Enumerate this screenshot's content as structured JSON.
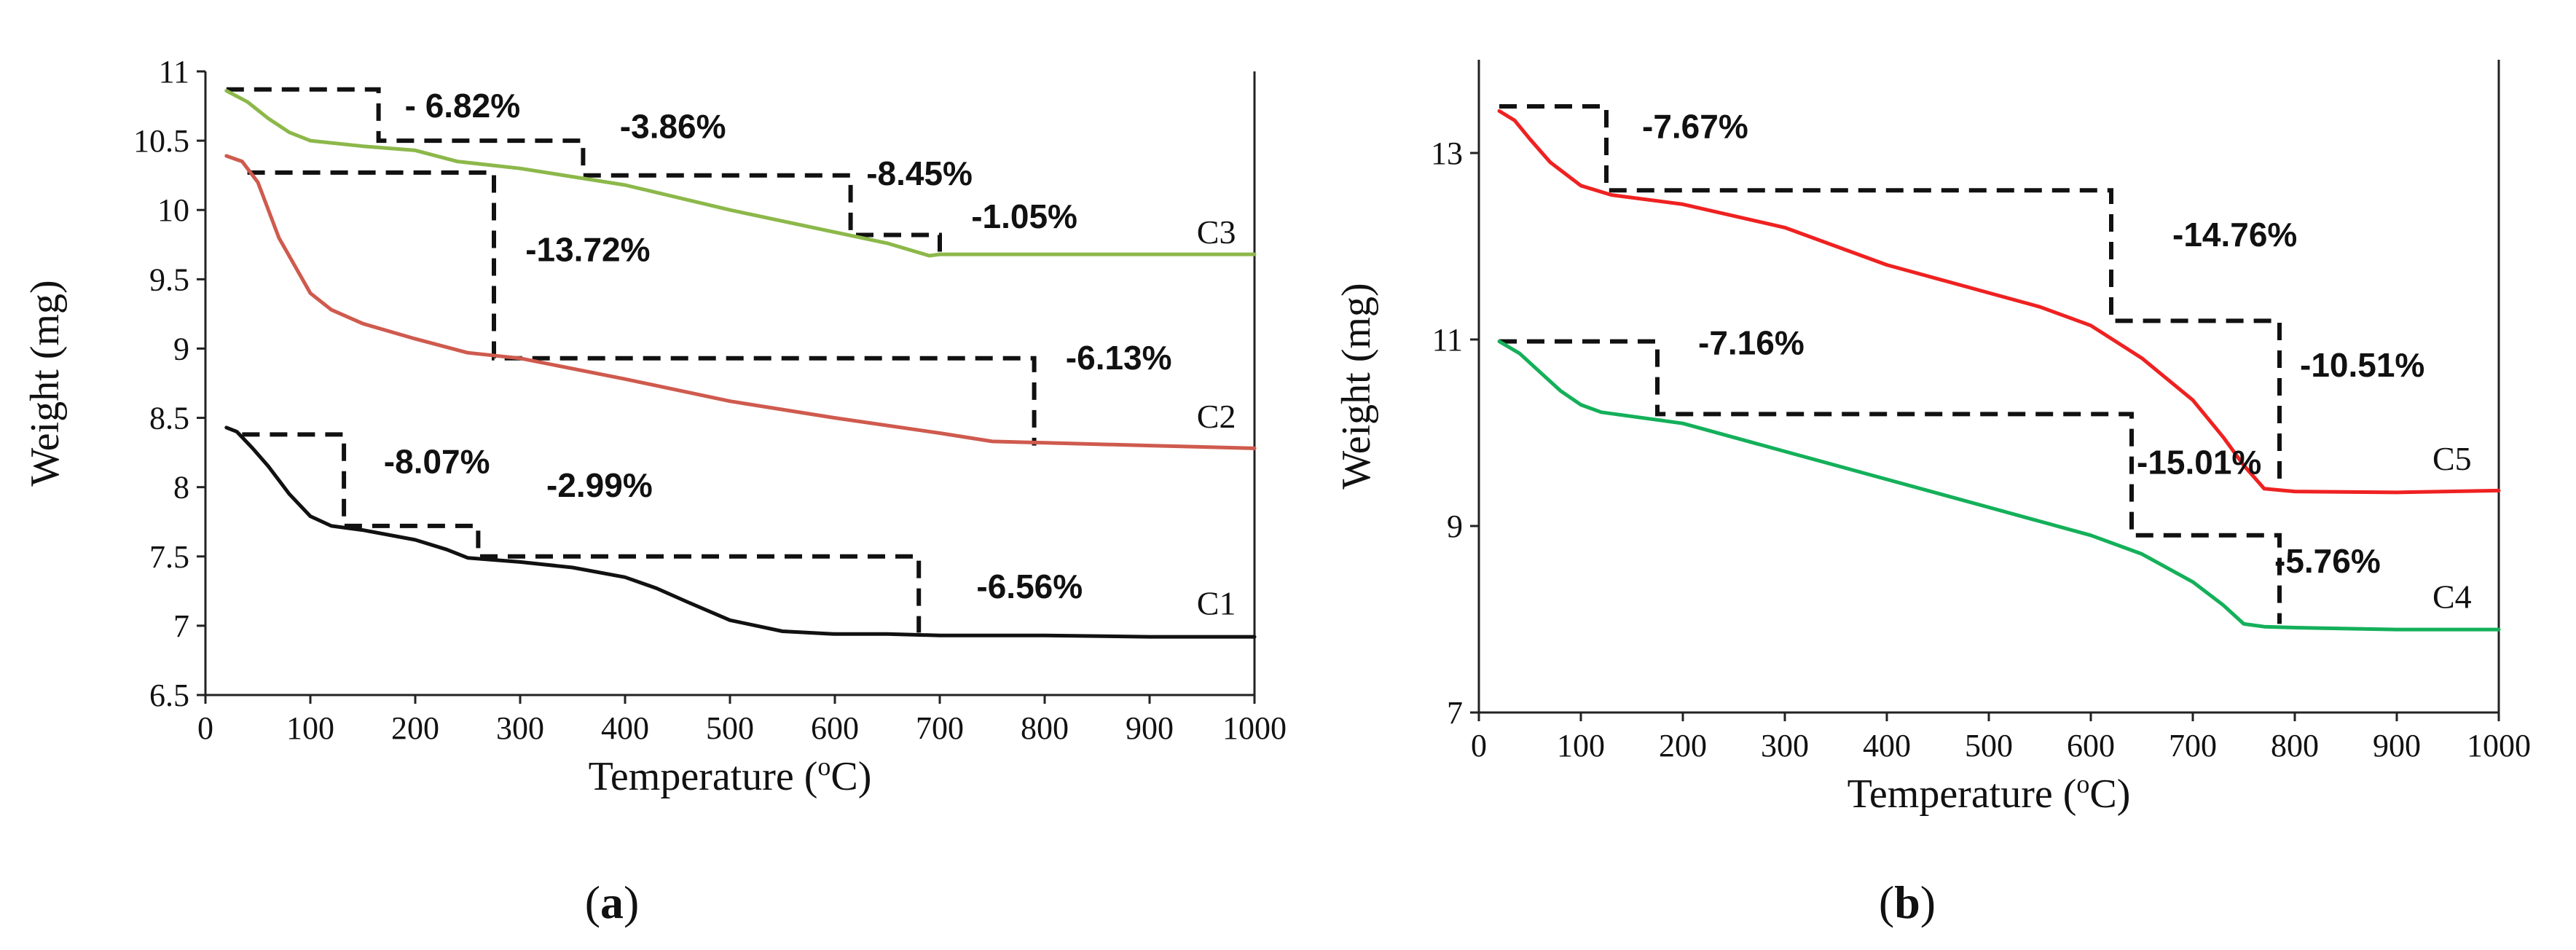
{
  "chart_data": [
    {
      "type": "line",
      "panel_label": "a",
      "xlabel": "Temperature (°C)",
      "ylabel": "Weight  (mg)",
      "xlim": [
        0,
        1000
      ],
      "ylim": [
        6.5,
        11
      ],
      "xticks": [
        0,
        100,
        200,
        300,
        400,
        500,
        600,
        700,
        800,
        900,
        1000
      ],
      "yticks": [
        6.5,
        7,
        7.5,
        8,
        8.5,
        9,
        9.5,
        10,
        10.5,
        11
      ],
      "ytick_labels": [
        "6.5",
        "7",
        "7.5",
        "8",
        "8.5",
        "9",
        "9.5",
        "10",
        "10.5",
        "11"
      ],
      "grid": false,
      "series": [
        {
          "name": "C1",
          "color": "#111111",
          "x": [
            20,
            30,
            45,
            60,
            80,
            100,
            120,
            150,
            200,
            230,
            250,
            300,
            350,
            400,
            430,
            460,
            500,
            550,
            600,
            650,
            700,
            800,
            900,
            1000
          ],
          "values": [
            8.43,
            8.4,
            8.28,
            8.15,
            7.95,
            7.79,
            7.72,
            7.69,
            7.62,
            7.55,
            7.49,
            7.46,
            7.42,
            7.35,
            7.27,
            7.17,
            7.04,
            6.96,
            6.94,
            6.94,
            6.93,
            6.93,
            6.92,
            6.92
          ]
        },
        {
          "name": "C2",
          "color": "#cf5a4e",
          "x": [
            20,
            35,
            50,
            70,
            100,
            120,
            150,
            200,
            250,
            300,
            400,
            500,
            600,
            700,
            750,
            800,
            900,
            1000
          ],
          "values": [
            10.39,
            10.35,
            10.2,
            9.8,
            9.4,
            9.28,
            9.18,
            9.07,
            8.97,
            8.93,
            8.78,
            8.62,
            8.5,
            8.39,
            8.33,
            8.32,
            8.3,
            8.28
          ]
        },
        {
          "name": "C3",
          "color": "#8cb84a",
          "x": [
            20,
            40,
            60,
            80,
            100,
            150,
            200,
            240,
            300,
            400,
            500,
            600,
            650,
            690,
            700,
            800,
            900,
            1000
          ],
          "values": [
            10.86,
            10.78,
            10.66,
            10.56,
            10.5,
            10.46,
            10.43,
            10.35,
            10.3,
            10.18,
            10.0,
            9.84,
            9.76,
            9.67,
            9.68,
            9.68,
            9.68,
            9.68
          ]
        }
      ],
      "step_lines": [
        {
          "x": [
            20,
            165,
            165,
            360,
            360,
            615,
            615,
            700,
            700
          ],
          "values": [
            10.87,
            10.87,
            10.5,
            10.5,
            10.25,
            10.25,
            9.82,
            9.82,
            9.68
          ]
        },
        {
          "x": [
            40,
            275,
            275,
            790,
            790
          ],
          "values": [
            10.27,
            10.27,
            8.93,
            8.93,
            8.3
          ]
        },
        {
          "x": [
            35,
            132,
            132,
            260,
            260,
            680,
            680
          ],
          "values": [
            8.38,
            8.38,
            7.72,
            7.72,
            7.5,
            7.5,
            6.95
          ]
        }
      ],
      "annotations": [
        {
          "text": "- 6.82%",
          "x": 190,
          "y": 10.67
        },
        {
          "text": "-3.86%",
          "x": 395,
          "y": 10.52
        },
        {
          "text": "-8.45%",
          "x": 630,
          "y": 10.18
        },
        {
          "text": "-1.05%",
          "x": 730,
          "y": 9.87
        },
        {
          "text": "-13.72%",
          "x": 305,
          "y": 9.63
        },
        {
          "text": "-6.13%",
          "x": 820,
          "y": 8.85
        },
        {
          "text": "-8.07%",
          "x": 170,
          "y": 8.1
        },
        {
          "text": "-2.99%",
          "x": 325,
          "y": 7.93
        },
        {
          "text": "-6.56%",
          "x": 735,
          "y": 7.2
        },
        {
          "text": "C3",
          "x": 945,
          "y": 9.76,
          "kind": "series"
        },
        {
          "text": "C2",
          "x": 945,
          "y": 8.43,
          "kind": "series"
        },
        {
          "text": "C1",
          "x": 945,
          "y": 7.08,
          "kind": "series"
        }
      ]
    },
    {
      "type": "line",
      "panel_label": "b",
      "xlabel": "Temperature (°C)",
      "ylabel": "Weight (mg)",
      "xlim": [
        0,
        1000
      ],
      "ylim": [
        7,
        14
      ],
      "xticks": [
        0,
        100,
        200,
        300,
        400,
        500,
        600,
        700,
        800,
        900,
        1000
      ],
      "yticks": [
        7,
        9,
        11,
        13
      ],
      "ytick_labels": [
        "7",
        "9",
        "11",
        "13"
      ],
      "grid": false,
      "series": [
        {
          "name": "C5",
          "color": "#ef2121",
          "x": [
            20,
            35,
            50,
            70,
            100,
            130,
            200,
            300,
            400,
            500,
            550,
            600,
            650,
            700,
            730,
            750,
            770,
            790,
            800,
            900,
            1000
          ],
          "values": [
            13.45,
            13.35,
            13.15,
            12.9,
            12.65,
            12.55,
            12.45,
            12.2,
            11.8,
            11.5,
            11.35,
            11.15,
            10.8,
            10.35,
            9.95,
            9.65,
            9.4,
            9.38,
            9.37,
            9.36,
            9.38
          ]
        },
        {
          "name": "C4",
          "color": "#14b05a",
          "x": [
            20,
            40,
            60,
            80,
            100,
            120,
            200,
            300,
            400,
            500,
            600,
            650,
            700,
            730,
            750,
            770,
            800,
            900,
            1000
          ],
          "values": [
            10.98,
            10.85,
            10.65,
            10.45,
            10.3,
            10.22,
            10.1,
            9.8,
            9.5,
            9.2,
            8.9,
            8.7,
            8.4,
            8.15,
            7.95,
            7.92,
            7.91,
            7.89,
            7.89
          ]
        }
      ],
      "step_lines": [
        {
          "x": [
            20,
            125,
            125,
            620,
            620,
            785,
            785
          ],
          "values": [
            13.5,
            13.5,
            12.6,
            12.6,
            11.2,
            11.2,
            9.37
          ]
        },
        {
          "x": [
            20,
            175,
            175,
            640,
            640,
            785,
            785
          ],
          "values": [
            10.98,
            10.98,
            10.2,
            10.2,
            8.9,
            8.9,
            7.95
          ]
        }
      ],
      "annotations": [
        {
          "text": "-7.67%",
          "x": 160,
          "y": 13.16
        },
        {
          "text": "-14.76%",
          "x": 680,
          "y": 12.0
        },
        {
          "text": "-10.51%",
          "x": 805,
          "y": 10.6
        },
        {
          "text": "-7.16%",
          "x": 215,
          "y": 10.84
        },
        {
          "text": "-15.01%",
          "x": 645,
          "y": 9.56
        },
        {
          "text": "-5.76%",
          "x": 780,
          "y": 8.5
        },
        {
          "text": "C5",
          "x": 935,
          "y": 9.6,
          "kind": "series"
        },
        {
          "text": "C4",
          "x": 935,
          "y": 8.12,
          "kind": "series"
        }
      ]
    }
  ],
  "panel_labels": [
    {
      "open": "(",
      "letter": "a",
      "close": ")"
    },
    {
      "open": "(",
      "letter": "b",
      "close": ")"
    }
  ]
}
